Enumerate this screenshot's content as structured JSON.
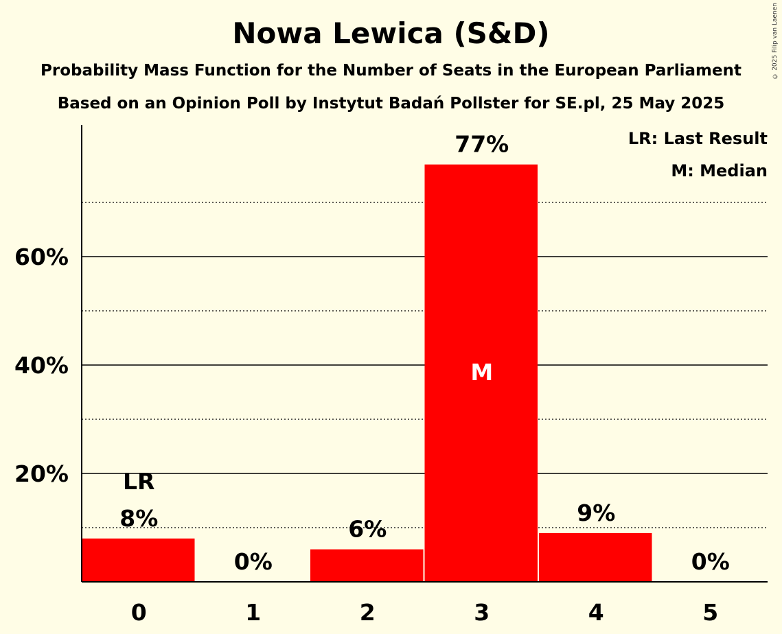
{
  "header": {
    "title": "Nowa Lewica (S&D)",
    "subtitle": "Probability Mass Function for the Number of Seats in the European Parliament",
    "subtitle2": "Based on an Opinion Poll by Instytut Badań Pollster for SE.pl, 25 May 2025",
    "copyright": "© 2025 Filip van Laenen"
  },
  "legend": {
    "last_result": "LR: Last Result",
    "median": "M: Median"
  },
  "chart_data": {
    "type": "bar",
    "categories": [
      "0",
      "1",
      "2",
      "3",
      "4",
      "5"
    ],
    "values": [
      8,
      0,
      6,
      77,
      9,
      0
    ],
    "value_labels": [
      "8%",
      "0%",
      "6%",
      "77%",
      "9%",
      "0%"
    ],
    "last_result_index": 0,
    "last_result_label": "LR",
    "median_index": 3,
    "median_label": "M",
    "yticks": [
      20,
      40,
      60
    ],
    "ytick_labels": [
      "20%",
      "40%",
      "60%"
    ],
    "minor_gridlines": [
      10,
      30,
      50,
      70
    ],
    "ylim": [
      0,
      84
    ],
    "bar_color": "#ff0000",
    "background_color": "#fffde6",
    "legend_position": "top-right"
  }
}
